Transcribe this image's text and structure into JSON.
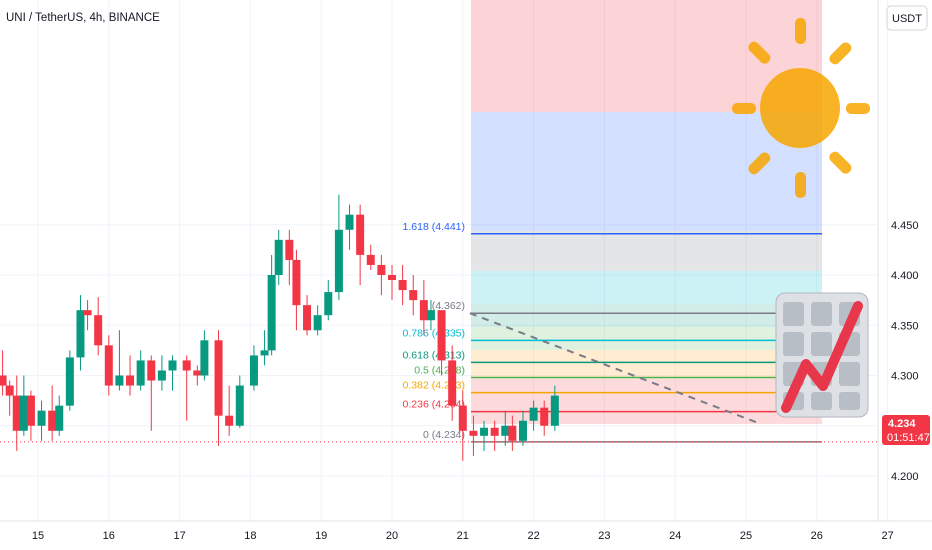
{
  "header": {
    "symbol_title": "UNI / TetherUS, 4h, BINANCE",
    "currency_button": "USDT"
  },
  "price_badge": {
    "price": "4.234",
    "countdown": "01:51:47",
    "color": "#f23645"
  },
  "chart_data": {
    "type": "candlestick",
    "title": "UNI / TetherUS, 4h, BINANCE",
    "y_axis": {
      "ticks": [
        "4.450",
        "4.400",
        "4.350",
        "4.300",
        "4.250",
        "4.200"
      ],
      "range": [
        4.178,
        4.485
      ],
      "side": "right"
    },
    "x_axis": {
      "ticks": [
        "15",
        "16",
        "17",
        "18",
        "19",
        "20",
        "21",
        "22",
        "23",
        "24",
        "25",
        "26",
        "27"
      ],
      "range": [
        14.52,
        27.45
      ],
      "unit": "day"
    },
    "up_color": "#089981",
    "down_color": "#f23645",
    "candles": [
      [
        14.5,
        4.3,
        4.325,
        4.28,
        4.29
      ],
      [
        14.6,
        4.29,
        4.295,
        4.26,
        4.28
      ],
      [
        14.7,
        4.28,
        4.3,
        4.225,
        4.245
      ],
      [
        14.8,
        4.245,
        4.3,
        4.24,
        4.28
      ],
      [
        14.9,
        4.28,
        4.285,
        4.235,
        4.25
      ],
      [
        15.05,
        4.25,
        4.275,
        4.235,
        4.265
      ],
      [
        15.2,
        4.265,
        4.29,
        4.235,
        4.245
      ],
      [
        15.3,
        4.245,
        4.28,
        4.24,
        4.27
      ],
      [
        15.45,
        4.27,
        4.325,
        4.265,
        4.318
      ],
      [
        15.6,
        4.318,
        4.38,
        4.305,
        4.365
      ],
      [
        15.7,
        4.365,
        4.375,
        4.345,
        4.36
      ],
      [
        15.85,
        4.36,
        4.378,
        4.32,
        4.33
      ],
      [
        16.0,
        4.33,
        4.34,
        4.28,
        4.29
      ],
      [
        16.15,
        4.29,
        4.345,
        4.285,
        4.3
      ],
      [
        16.3,
        4.3,
        4.32,
        4.28,
        4.29
      ],
      [
        16.45,
        4.29,
        4.325,
        4.285,
        4.315
      ],
      [
        16.6,
        4.315,
        4.32,
        4.245,
        4.295
      ],
      [
        16.75,
        4.295,
        4.32,
        4.285,
        4.305
      ],
      [
        16.9,
        4.305,
        4.32,
        4.285,
        4.315
      ],
      [
        17.1,
        4.315,
        4.32,
        4.255,
        4.305
      ],
      [
        17.25,
        4.305,
        4.31,
        4.29,
        4.3
      ],
      [
        17.35,
        4.3,
        4.345,
        4.295,
        4.335
      ],
      [
        17.55,
        4.335,
        4.345,
        4.23,
        4.26
      ],
      [
        17.7,
        4.26,
        4.29,
        4.24,
        4.25
      ],
      [
        17.85,
        4.25,
        4.3,
        4.248,
        4.29
      ],
      [
        18.05,
        4.29,
        4.33,
        4.285,
        4.32
      ],
      [
        18.2,
        4.32,
        4.345,
        4.31,
        4.325
      ],
      [
        18.3,
        4.325,
        4.42,
        4.32,
        4.4
      ],
      [
        18.4,
        4.4,
        4.445,
        4.39,
        4.435
      ],
      [
        18.55,
        4.435,
        4.445,
        4.39,
        4.415
      ],
      [
        18.65,
        4.415,
        4.425,
        4.345,
        4.37
      ],
      [
        18.8,
        4.37,
        4.38,
        4.34,
        4.345
      ],
      [
        18.95,
        4.345,
        4.37,
        4.34,
        4.36
      ],
      [
        19.1,
        4.36,
        4.395,
        4.355,
        4.383
      ],
      [
        19.25,
        4.383,
        4.48,
        4.375,
        4.445
      ],
      [
        19.4,
        4.445,
        4.47,
        4.425,
        4.46
      ],
      [
        19.55,
        4.46,
        4.47,
        4.39,
        4.42
      ],
      [
        19.7,
        4.42,
        4.43,
        4.405,
        4.41
      ],
      [
        19.85,
        4.41,
        4.42,
        4.38,
        4.4
      ],
      [
        20.0,
        4.4,
        4.41,
        4.375,
        4.395
      ],
      [
        20.15,
        4.395,
        4.41,
        4.37,
        4.385
      ],
      [
        20.3,
        4.385,
        4.4,
        4.36,
        4.375
      ],
      [
        20.45,
        4.375,
        4.395,
        4.34,
        4.355
      ],
      [
        20.55,
        4.355,
        4.375,
        4.345,
        4.365
      ],
      [
        20.7,
        4.365,
        4.365,
        4.3,
        4.315
      ],
      [
        20.85,
        4.315,
        4.33,
        4.255,
        4.27
      ],
      [
        21.0,
        4.27,
        4.285,
        4.215,
        4.245
      ],
      [
        21.15,
        4.245,
        4.26,
        4.22,
        4.24
      ],
      [
        21.3,
        4.24,
        4.255,
        4.225,
        4.248
      ],
      [
        21.45,
        4.248,
        4.255,
        4.225,
        4.24
      ],
      [
        21.6,
        4.24,
        4.265,
        4.23,
        4.25
      ],
      [
        21.7,
        4.25,
        4.26,
        4.225,
        4.235
      ],
      [
        21.85,
        4.235,
        4.265,
        4.23,
        4.255
      ],
      [
        22.0,
        4.255,
        4.275,
        4.245,
        4.268
      ],
      [
        22.15,
        4.268,
        4.275,
        4.24,
        4.25
      ],
      [
        22.3,
        4.25,
        4.29,
        4.245,
        4.28
      ]
    ],
    "fib_levels": [
      {
        "label": "1.618 (4.441)",
        "value": 4.441,
        "color": "#2962ff"
      },
      {
        "label": "1 (4.362)",
        "value": 4.362,
        "color": "#787b86"
      },
      {
        "label": "0.786 (4.335)",
        "value": 4.335,
        "color": "#00bcd4"
      },
      {
        "label": "0.618 (4.313)",
        "value": 4.313,
        "color": "#089981"
      },
      {
        "label": "0.5 (4.298)",
        "value": 4.298,
        "color": "#4caf50"
      },
      {
        "label": "0.382 (4.283)",
        "value": 4.283,
        "color": "#f7a600"
      },
      {
        "label": "0.236 (4.264)",
        "value": 4.264,
        "color": "#f23645"
      },
      {
        "label": "0 (4.234)",
        "value": 4.234,
        "color": "#787b86"
      }
    ],
    "trend_line": {
      "from": [
        21.1,
        4.362
      ],
      "to": [
        25.2,
        4.252
      ],
      "style": "dashed"
    },
    "current_price_line": 4.234,
    "grid": true
  }
}
